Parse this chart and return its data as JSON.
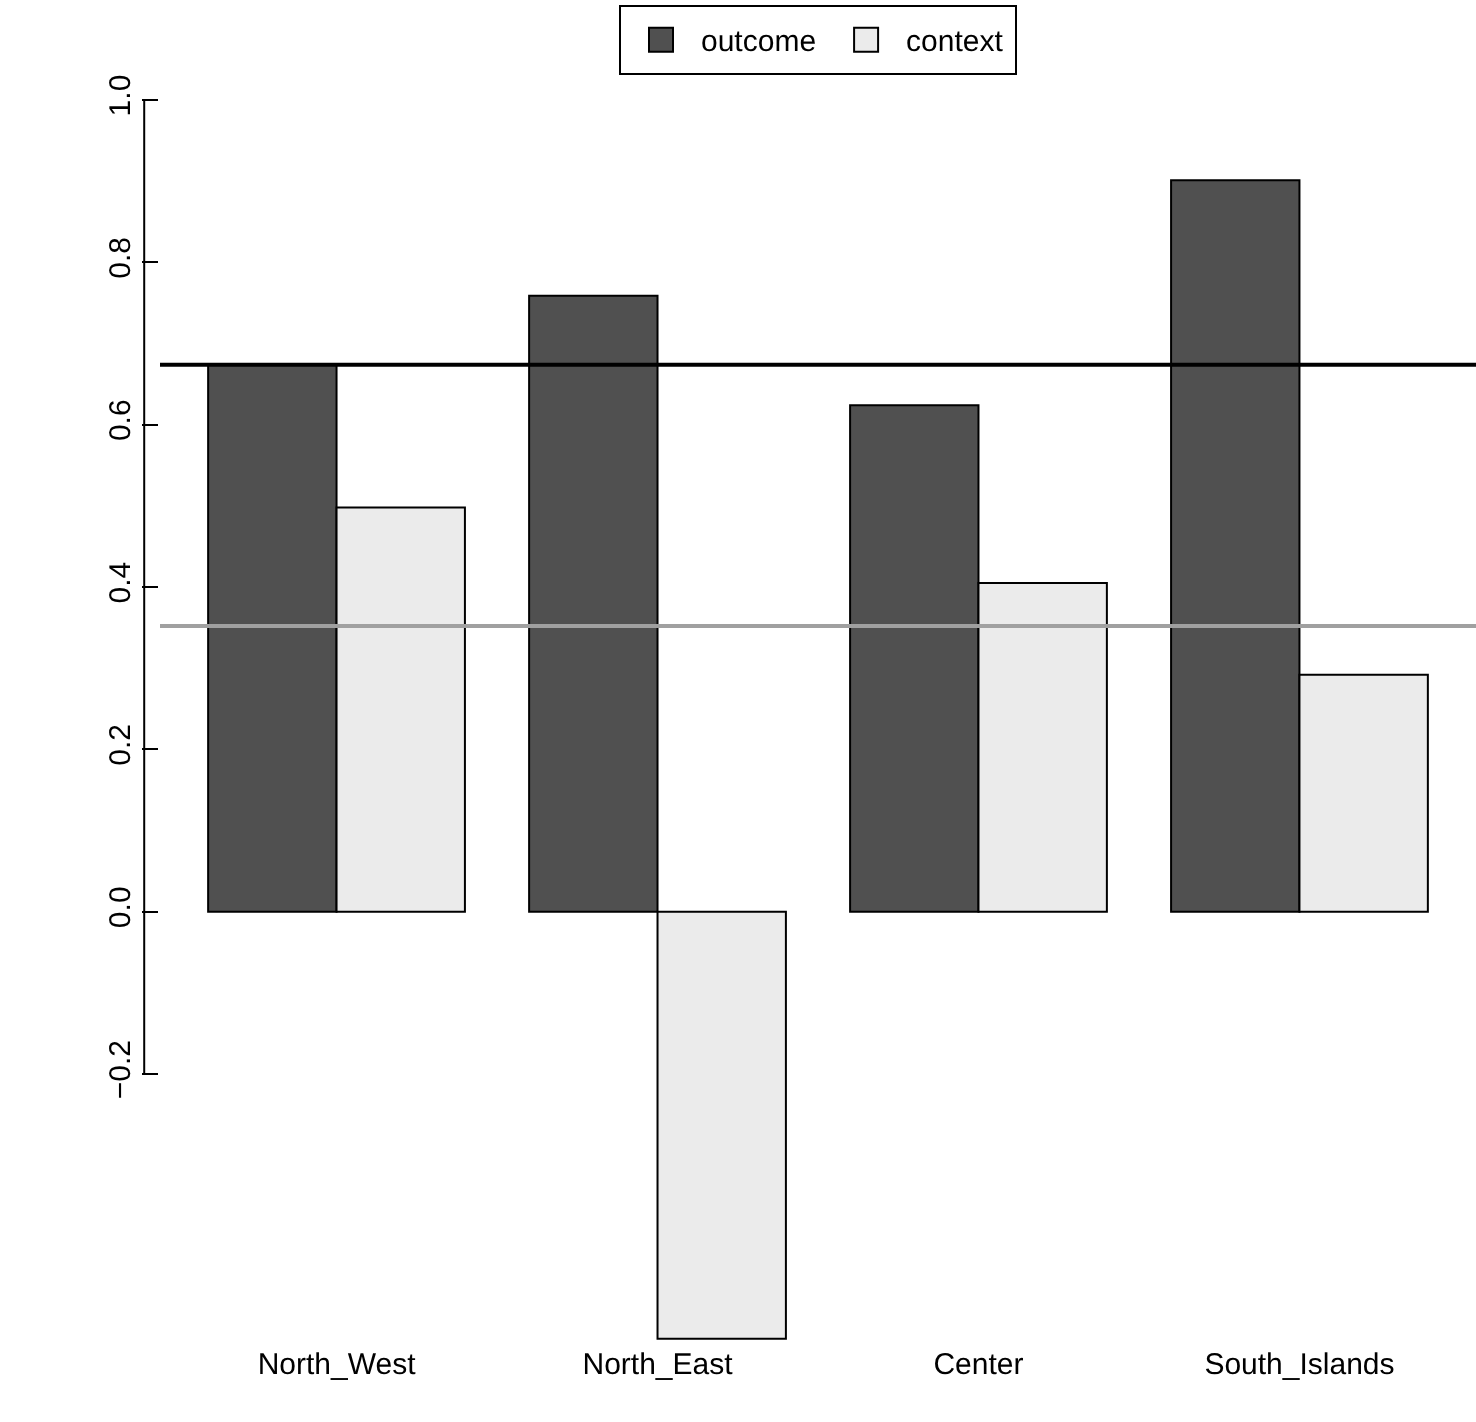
{
  "chart_data": {
    "type": "bar",
    "categories": [
      "North_West",
      "North_East",
      "Center",
      "South_Islands"
    ],
    "series": [
      {
        "name": "outcome",
        "color": "#505050",
        "values": [
          0.674,
          0.759,
          0.624,
          0.901
        ]
      },
      {
        "name": "context",
        "color": "#ebebeb",
        "values": [
          0.498,
          -0.526,
          0.405,
          0.292
        ]
      }
    ],
    "ylim": [
      -0.53,
      1.0
    ],
    "yticks": [
      {
        "value": -0.2,
        "label": "−0.2"
      },
      {
        "value": 0,
        "label": "0.0"
      },
      {
        "value": 0.2,
        "label": "0.2"
      },
      {
        "value": 0.4,
        "label": "0.4"
      },
      {
        "value": 0.6,
        "label": "0.6"
      },
      {
        "value": 0.8,
        "label": "0.8"
      },
      {
        "value": 1.0,
        "label": "1.0"
      }
    ],
    "ref_lines": [
      {
        "axis": "y",
        "value": 0.674,
        "color": "#000000"
      },
      {
        "axis": "y",
        "value": 0.352,
        "color": "#a0a0a0"
      }
    ],
    "legend": "top",
    "grid": false
  }
}
